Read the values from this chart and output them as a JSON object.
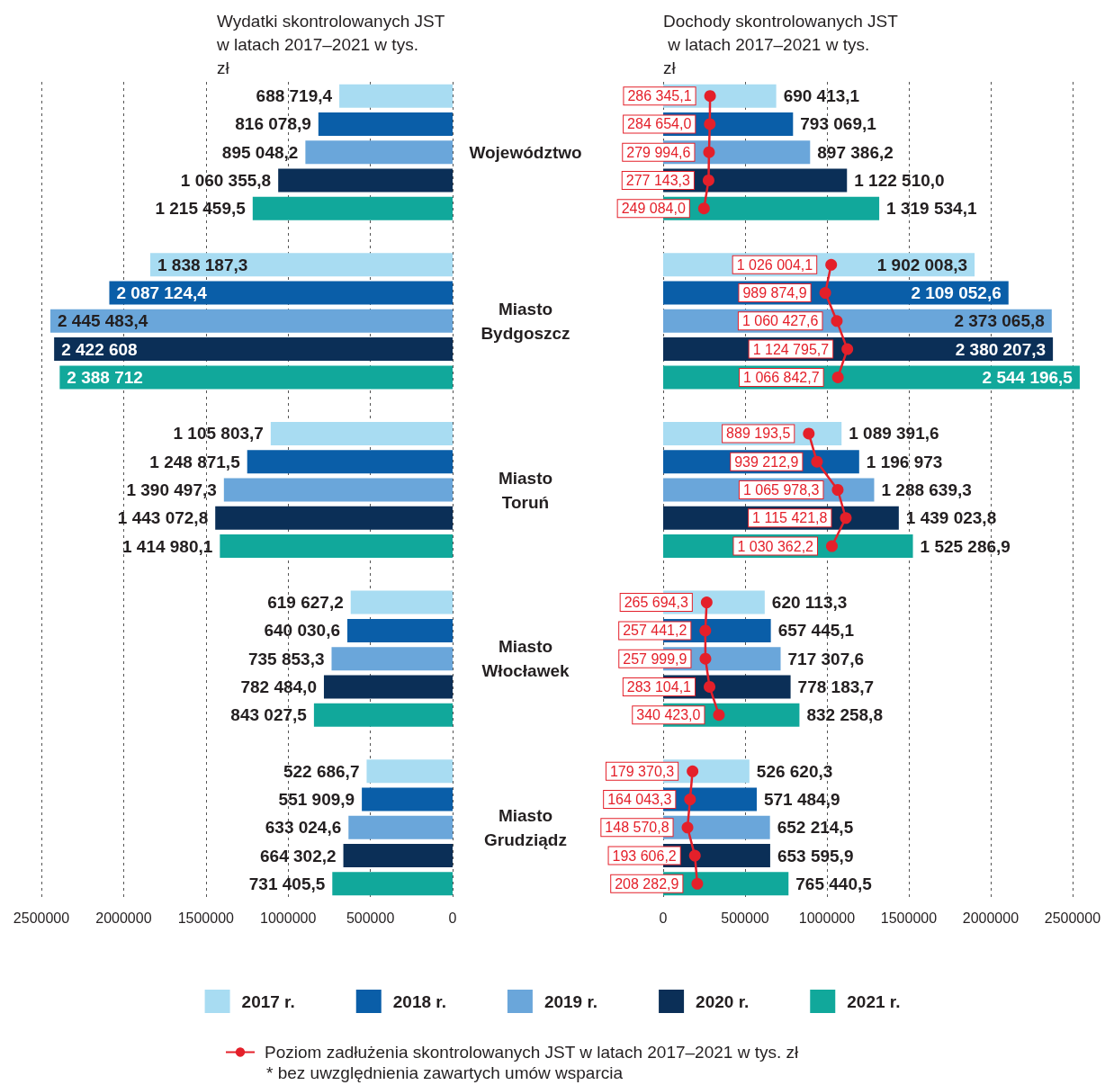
{
  "chart_data": [
    {
      "type": "bar",
      "orientation": "horizontal",
      "title": "Wydatki skontrolowanych JST w latach 2017–2021 w tys. zł",
      "categories": [
        null,
        null,
        null,
        null,
        null,
        null,
        null,
        null,
        null,
        null,
        null,
        null,
        null,
        null,
        null,
        null,
        null,
        null,
        null,
        null,
        null,
        null,
        null,
        null,
        null,
        null,
        null,
        null,
        null
      ],
      "xlim": [
        2500000,
        0
      ],
      "xticks": [
        2500000,
        2000000,
        1500000,
        1000000,
        500000,
        0
      ],
      "grid": "x",
      "annotations": [
        "Województwo",
        "Miasto Bydgoszcz",
        "Miasto Toruń",
        "Miasto Włocławek",
        "Miasto Grudziądz"
      ],
      "series": [
        {
          "color": "#a8dcf2",
          "values": [
            688719.4,
            null,
            null,
            null,
            null,
            null,
            1838187.3,
            null,
            null,
            null,
            null,
            null,
            1105803.7,
            null,
            null,
            null,
            null,
            null,
            619627.2,
            null,
            null,
            null,
            null,
            null,
            522686.7,
            null,
            null,
            null,
            null
          ],
          "value_labels": [
            "688 719,4",
            null,
            null,
            null,
            null,
            null,
            "1 838 187,3",
            null,
            null,
            null,
            null,
            null,
            "1 105 803,7",
            null,
            null,
            null,
            null,
            null,
            "619 627,2",
            null,
            null,
            null,
            null,
            null,
            "522 686,7",
            null,
            null,
            null,
            null
          ]
        },
        {
          "color": "#0a5ea8",
          "values": [
            null,
            816078.9,
            null,
            null,
            null,
            null,
            null,
            2087124.4,
            null,
            null,
            null,
            null,
            null,
            1248871.5,
            null,
            null,
            null,
            null,
            null,
            640030.6,
            null,
            null,
            null,
            null,
            null,
            551909.9,
            null,
            null,
            null
          ],
          "value_labels": [
            null,
            "816 078,9",
            null,
            null,
            null,
            null,
            null,
            "2 087 124,4",
            null,
            null,
            null,
            null,
            null,
            "1 248 871,5",
            null,
            null,
            null,
            null,
            null,
            "640 030,6",
            null,
            null,
            null,
            null,
            null,
            "551 909,9",
            null,
            null,
            null
          ]
        },
        {
          "color": "#6aa6da",
          "values": [
            null,
            null,
            895048.2,
            null,
            null,
            null,
            null,
            null,
            2445483.4,
            null,
            null,
            null,
            null,
            null,
            1390497.3,
            null,
            null,
            null,
            null,
            null,
            735853.3,
            null,
            null,
            null,
            null,
            null,
            633024.6,
            null,
            null
          ],
          "value_labels": [
            null,
            null,
            "895 048,2",
            null,
            null,
            null,
            null,
            null,
            "2 445 483,4",
            null,
            null,
            null,
            null,
            null,
            "1 390 497,3",
            null,
            null,
            null,
            null,
            null,
            "735 853,3",
            null,
            null,
            null,
            null,
            null,
            "633 024,6",
            null,
            null
          ]
        },
        {
          "color": "#0b2f57",
          "values": [
            null,
            null,
            null,
            1060355.8,
            null,
            null,
            null,
            null,
            null,
            2422608,
            null,
            null,
            null,
            null,
            null,
            1443072.8,
            null,
            null,
            null,
            null,
            null,
            782484.0,
            null,
            null,
            null,
            null,
            null,
            664302.2,
            null
          ],
          "value_labels": [
            null,
            null,
            null,
            "1 060 355,8",
            null,
            null,
            null,
            null,
            null,
            "2 422 608",
            null,
            null,
            null,
            null,
            null,
            "1 443 072,8",
            null,
            null,
            null,
            null,
            null,
            "782 484,0",
            null,
            null,
            null,
            null,
            null,
            "664 302,2",
            null
          ]
        },
        {
          "color": "#11a89b",
          "values": [
            null,
            null,
            null,
            null,
            1215459.5,
            null,
            null,
            null,
            null,
            null,
            2388712,
            null,
            null,
            null,
            null,
            null,
            1414980.1,
            null,
            null,
            null,
            null,
            null,
            843027.5,
            null,
            null,
            null,
            null,
            null,
            731405.5
          ],
          "value_labels": [
            null,
            null,
            null,
            null,
            "1 215 459,5",
            null,
            null,
            null,
            null,
            null,
            "2 388 712",
            null,
            null,
            null,
            null,
            null,
            "1 414 980,1",
            null,
            null,
            null,
            null,
            null,
            "843 027,5",
            null,
            null,
            null,
            null,
            null,
            "731 405,5"
          ]
        }
      ]
    },
    {
      "type": "bar",
      "orientation": "horizontal",
      "title": "Dochody skontrolowanych JST w latach 2017–2021 w tys. zł",
      "categories": [
        null,
        null,
        null,
        null,
        null,
        null,
        null,
        null,
        null,
        null,
        null,
        null,
        null,
        null,
        null,
        null,
        null,
        null,
        null,
        null,
        null,
        null,
        null,
        null,
        null,
        null,
        null,
        null,
        null
      ],
      "xlim": [
        0,
        2550000
      ],
      "xticks": [
        0,
        500000,
        1000000,
        1500000,
        2000000,
        2500000
      ],
      "grid": "x",
      "legend": "bottom",
      "marker": "circle",
      "annotations": [
        "* bez uwzględnienia zawartych umów wsparcia"
      ],
      "series": [
        {
          "name": "2017 r.",
          "color": "#a8dcf2",
          "values": [
            690413.1,
            null,
            null,
            null,
            null,
            null,
            1902008.3,
            null,
            null,
            null,
            null,
            null,
            1089391.6,
            null,
            null,
            null,
            null,
            null,
            620113.3,
            null,
            null,
            null,
            null,
            null,
            526620.3,
            null,
            null,
            null,
            null
          ],
          "value_labels": [
            "690 413,1",
            null,
            null,
            null,
            null,
            null,
            "1 902 008,3",
            null,
            null,
            null,
            null,
            null,
            "1 089 391,6",
            null,
            null,
            null,
            null,
            null,
            "620 113,3",
            null,
            null,
            null,
            null,
            null,
            "526 620,3",
            null,
            null,
            null,
            null
          ]
        },
        {
          "name": "2018 r.",
          "color": "#0a5ea8",
          "values": [
            null,
            793069.1,
            null,
            null,
            null,
            null,
            null,
            2109052.6,
            null,
            null,
            null,
            null,
            null,
            1196973,
            null,
            null,
            null,
            null,
            null,
            657445.1,
            null,
            null,
            null,
            null,
            null,
            571484.9,
            null,
            null,
            null
          ],
          "value_labels": [
            null,
            "793 069,1",
            null,
            null,
            null,
            null,
            null,
            "2 109 052,6",
            null,
            null,
            null,
            null,
            null,
            "1 196 973",
            null,
            null,
            null,
            null,
            null,
            "657 445,1",
            null,
            null,
            null,
            null,
            null,
            "571 484,9",
            null,
            null,
            null
          ]
        },
        {
          "name": "2019 r.",
          "color": "#6aa6da",
          "values": [
            null,
            null,
            897386.2,
            null,
            null,
            null,
            null,
            null,
            2373065.8,
            null,
            null,
            null,
            null,
            null,
            1288639.3,
            null,
            null,
            null,
            null,
            null,
            717307.6,
            null,
            null,
            null,
            null,
            null,
            652214.5,
            null,
            null
          ],
          "value_labels": [
            null,
            null,
            "897 386,2",
            null,
            null,
            null,
            null,
            null,
            "2 373 065,8",
            null,
            null,
            null,
            null,
            null,
            "1 288 639,3",
            null,
            null,
            null,
            null,
            null,
            "717 307,6",
            null,
            null,
            null,
            null,
            null,
            "652 214,5",
            null,
            null
          ]
        },
        {
          "name": "2020 r.",
          "color": "#0b2f57",
          "values": [
            null,
            null,
            null,
            1122510.0,
            null,
            null,
            null,
            null,
            null,
            2380207.3,
            null,
            null,
            null,
            null,
            null,
            1439023.8,
            null,
            null,
            null,
            null,
            null,
            778183.7,
            null,
            null,
            null,
            null,
            null,
            653595.9,
            null
          ],
          "value_labels": [
            null,
            null,
            null,
            "1 122 510,0",
            null,
            null,
            null,
            null,
            null,
            "2 380 207,3",
            null,
            null,
            null,
            null,
            null,
            "1 439 023,8",
            null,
            null,
            null,
            null,
            null,
            "778 183,7",
            null,
            null,
            null,
            null,
            null,
            "653 595,9",
            null
          ]
        },
        {
          "name": "2021 r.",
          "color": "#11a89b",
          "values": [
            null,
            null,
            null,
            null,
            1319534.1,
            null,
            null,
            null,
            null,
            null,
            2544196.5,
            null,
            null,
            null,
            null,
            null,
            1525286.9,
            null,
            null,
            null,
            null,
            null,
            832258.8,
            null,
            null,
            null,
            null,
            null,
            765440.5
          ],
          "value_labels": [
            null,
            null,
            null,
            null,
            "1 319 534,1",
            null,
            null,
            null,
            null,
            null,
            "2 544 196,5",
            null,
            null,
            null,
            null,
            null,
            "1 525 286,9",
            null,
            null,
            null,
            null,
            null,
            "832 258,8",
            null,
            null,
            null,
            null,
            null,
            "765 440,5"
          ]
        },
        {
          "type": "line",
          "name": "Poziom zadłużenia skontrolowanych JST w latach 2017–2021 w tys. zł",
          "color": "#e4202a",
          "values": [
            286345.1,
            284654.0,
            279994.6,
            277143.3,
            249084.0,
            null,
            1026004.1,
            989874.9,
            1060427.6,
            1124795.7,
            1066842.7,
            null,
            889193.5,
            939212.9,
            1065978.3,
            1115421.8,
            1030362.2,
            null,
            265694.3,
            257441.2,
            257999.9,
            283104.1,
            340423.0,
            null,
            179370.3,
            164043.3,
            148570.8,
            193606.2,
            208282.9
          ],
          "value_labels": [
            "286 345,1",
            "284 654,0",
            "279 994,6",
            "277 143,3",
            "249 084,0",
            null,
            "1 026 004,1",
            "989 874,9",
            "1 060 427,6",
            "1 124 795,7",
            "1 066 842,7",
            null,
            "889 193,5",
            "939 212,9",
            "1 065 978,3",
            "1 115 421,8",
            "1 030 362,2",
            null,
            "265 694,3",
            "257 441,2",
            "257 999,9",
            "283 104,1",
            "340 423,0",
            null,
            "179 370,3",
            "164 043,3",
            "148 570,8",
            "193 606,2",
            "208 282,9"
          ]
        }
      ]
    }
  ]
}
